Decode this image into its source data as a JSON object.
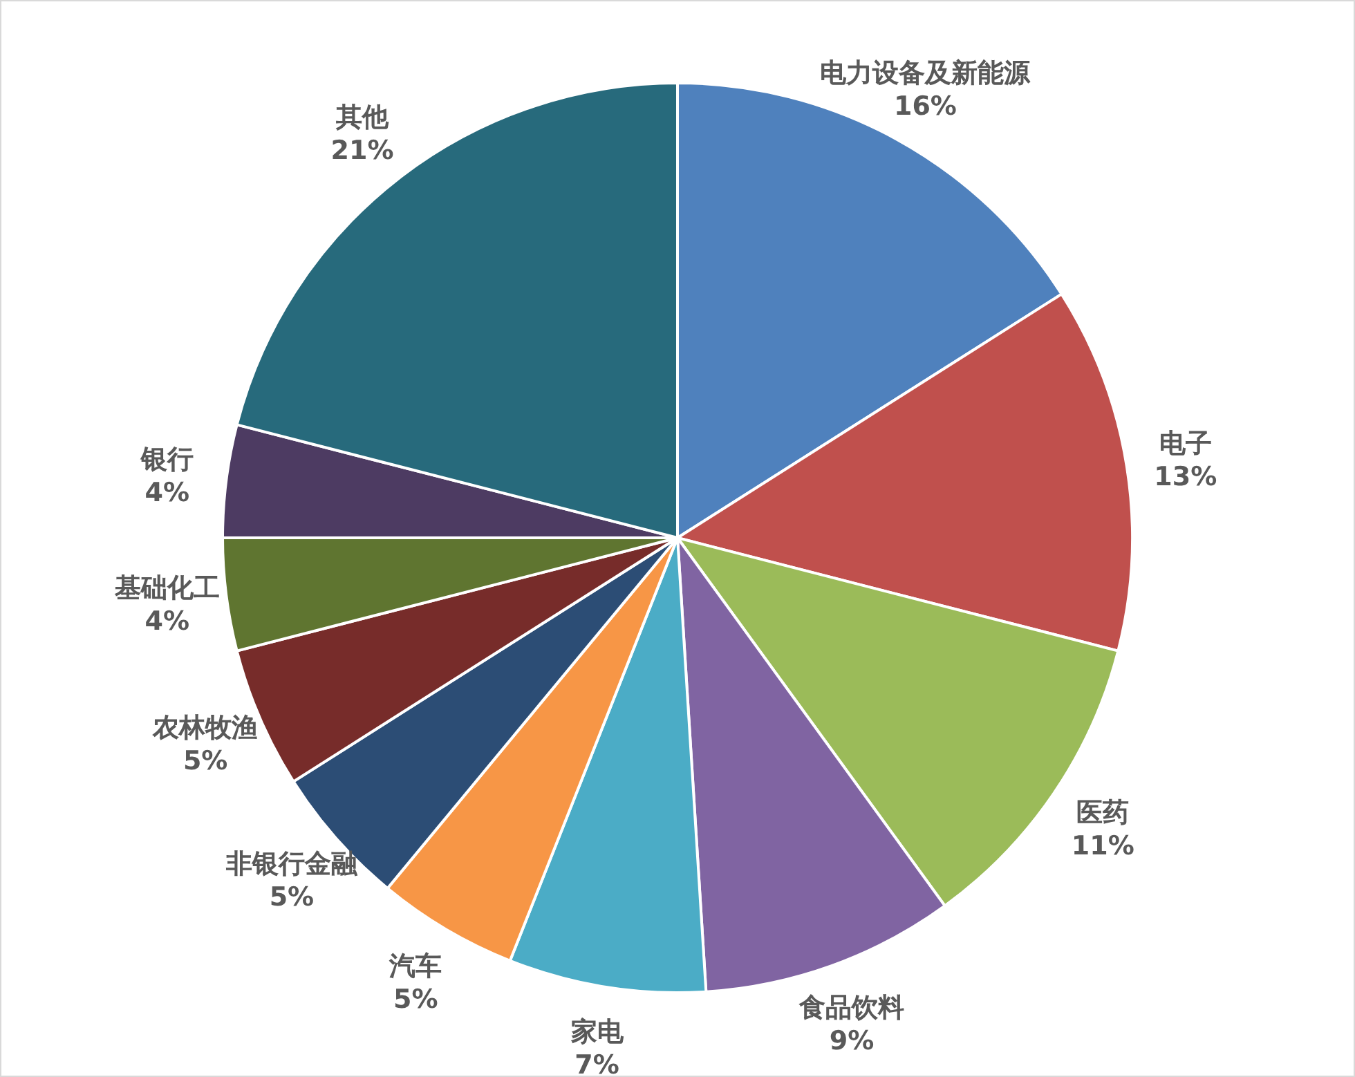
{
  "chart_data": {
    "type": "pie",
    "categories": [
      "电力设备及新能源",
      "电子",
      "医药",
      "食品饮料",
      "家电",
      "汽车",
      "非银行金融",
      "农林牧渔",
      "基础化工",
      "银行",
      "其他"
    ],
    "values": [
      16,
      13,
      11,
      9,
      7,
      5,
      5,
      5,
      4,
      4,
      21
    ],
    "value_labels": [
      "16%",
      "13%",
      "11%",
      "9%",
      "7%",
      "5%",
      "5%",
      "5%",
      "4%",
      "4%",
      "21%"
    ],
    "colors": [
      "#4f81bd",
      "#c0504d",
      "#9bbb59",
      "#8064a2",
      "#4bacc6",
      "#f79646",
      "#2c4d75",
      "#772c2a",
      "#5f7530",
      "#4d3b62",
      "#276a7c"
    ],
    "legend": false
  }
}
